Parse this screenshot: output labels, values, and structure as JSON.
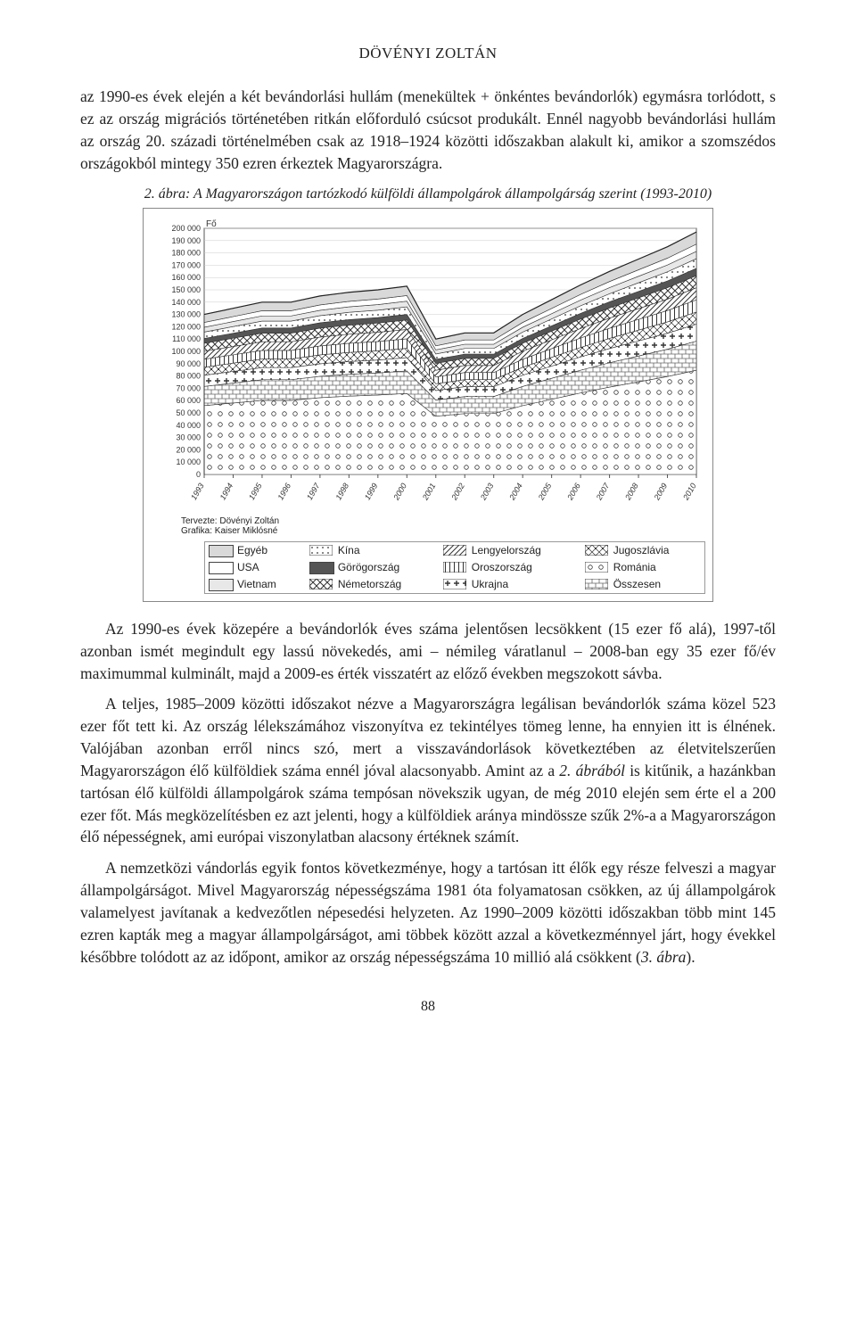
{
  "author": "DÖVÉNYI ZOLTÁN",
  "para1": "az 1990-es évek elején a két bevándorlási hullám (menekültek + önkéntes bevándorlók) egymásra torlódott, s ez az ország migrációs történetében ritkán előforduló csúcsot produkált. Ennél nagyobb bevándorlási hullám az ország 20. századi történelmében csak az 1918–1924 közötti időszakban alakult ki, amikor a szomszédos országokból mintegy 350 ezren érkeztek Magyarországra.",
  "fig_caption": "2. ábra: A Magyarországon tartózkodó külföldi állampolgárok állampolgárság szerint (1993-2010)",
  "chart": {
    "y_label": "Fő",
    "y_ticks": [
      0,
      10000,
      20000,
      30000,
      40000,
      50000,
      60000,
      70000,
      80000,
      90000,
      100000,
      110000,
      120000,
      130000,
      140000,
      150000,
      160000,
      170000,
      180000,
      190000,
      200000
    ],
    "y_tick_labels": [
      "0",
      "10 000",
      "20 000",
      "30 000",
      "40 000",
      "50 000",
      "60 000",
      "70 000",
      "80 000",
      "90 000",
      "100 000",
      "110 000",
      "120 000",
      "130 000",
      "140 000",
      "150 000",
      "160 000",
      "170 000",
      "180 000",
      "190 000",
      "200 000"
    ],
    "x_ticks": [
      1993,
      1994,
      1995,
      1996,
      1997,
      1998,
      1999,
      2000,
      2001,
      2002,
      2003,
      2004,
      2005,
      2006,
      2007,
      2008,
      2009,
      2010
    ],
    "series_top": [
      {
        "year": 1993,
        "value": 130000
      },
      {
        "year": 1994,
        "value": 135000
      },
      {
        "year": 1995,
        "value": 140000
      },
      {
        "year": 1996,
        "value": 140000
      },
      {
        "year": 1997,
        "value": 145000
      },
      {
        "year": 1998,
        "value": 148000
      },
      {
        "year": 1999,
        "value": 150000
      },
      {
        "year": 2000,
        "value": 153000
      },
      {
        "year": 2001,
        "value": 110000
      },
      {
        "year": 2002,
        "value": 115000
      },
      {
        "year": 2003,
        "value": 115000
      },
      {
        "year": 2004,
        "value": 130000
      },
      {
        "year": 2005,
        "value": 142000
      },
      {
        "year": 2006,
        "value": 154000
      },
      {
        "year": 2007,
        "value": 165000
      },
      {
        "year": 2008,
        "value": 175000
      },
      {
        "year": 2009,
        "value": 185000
      },
      {
        "year": 2010,
        "value": 197000
      }
    ],
    "bottom_band_share": 0.43,
    "credits_design": "Tervezte: Dövényi Zoltán",
    "credits_graphics": "Grafika: Kaiser Miklósné",
    "legend": [
      {
        "label": "Egyéb",
        "fill": "#d9d9d9",
        "pattern": "none"
      },
      {
        "label": "USA",
        "fill": "#ffffff",
        "pattern": "none"
      },
      {
        "label": "Vietnam",
        "fill": "#e8e8e8",
        "pattern": "none"
      },
      {
        "label": "Kína",
        "fill": "#ffffff",
        "pattern": "dots"
      },
      {
        "label": "Görögország",
        "fill": "#555555",
        "pattern": "none"
      },
      {
        "label": "Németország",
        "fill": "#ffffff",
        "pattern": "cross"
      },
      {
        "label": "Lengyelország",
        "fill": "#ffffff",
        "pattern": "diag"
      },
      {
        "label": "Oroszország",
        "fill": "#ffffff",
        "pattern": "vlines"
      },
      {
        "label": "Ukrajna",
        "fill": "#ffffff",
        "pattern": "plus"
      },
      {
        "label": "Jugoszlávia",
        "fill": "#ffffff",
        "pattern": "xdots"
      },
      {
        "label": "Románia",
        "fill": "#ffffff",
        "pattern": "circles"
      },
      {
        "label": "Összesen",
        "fill": "#ffffff",
        "pattern": "bricks"
      }
    ]
  },
  "para2": "Az 1990-es évek közepére a bevándorlók éves száma jelentősen lecsökkent (15 ezer fő alá), 1997-től azonban ismét megindult egy lassú növekedés, ami – némileg váratlanul – 2008-ban egy 35 ezer fő/év maximummal kulminált, majd a 2009-es érték visszatért az előző években megszokott sávba.",
  "para3": "A teljes, 1985–2009 közötti időszakot nézve a Magyarországra legálisan bevándorlók száma közel 523 ezer főt tett ki. Az ország lélekszámához viszonyítva ez tekintélyes tömeg lenne, ha ennyien itt is élnének. Valójában azonban erről nincs szó, mert a visszavándorlások következtében az életvitelszerűen Magyarországon élő külföldiek száma ennél jóval alacsonyabb. Amint az a <i>2. ábrából</i> is kitűnik, a hazánkban tartósan élő külföldi állampolgárok száma tempósan növekszik ugyan, de még 2010 elején sem érte el a 200 ezer főt. Más megközelítésben ez azt jelenti, hogy a külföldiek aránya mindössze szűk 2%-a a Magyarországon élő népességnek, ami európai viszonylatban alacsony értéknek számít.",
  "para4": "A nemzetközi vándorlás egyik fontos következménye, hogy a tartósan itt élők egy része felveszi a magyar állampolgárságot. Mivel Magyarország népességszáma 1981 óta folyamatosan csökken, az új állampolgárok valamelyest javítanak a kedvezőtlen népesedési helyzeten. Az 1990–2009 közötti időszakban több mint 145 ezren kapták meg a magyar állampolgárságot, ami többek között azzal a következménnyel járt, hogy évekkel későbbre tolódott az az időpont, amikor az ország népességszáma 10 millió alá csökkent (<i>3. ábra</i>).",
  "page_number": "88"
}
